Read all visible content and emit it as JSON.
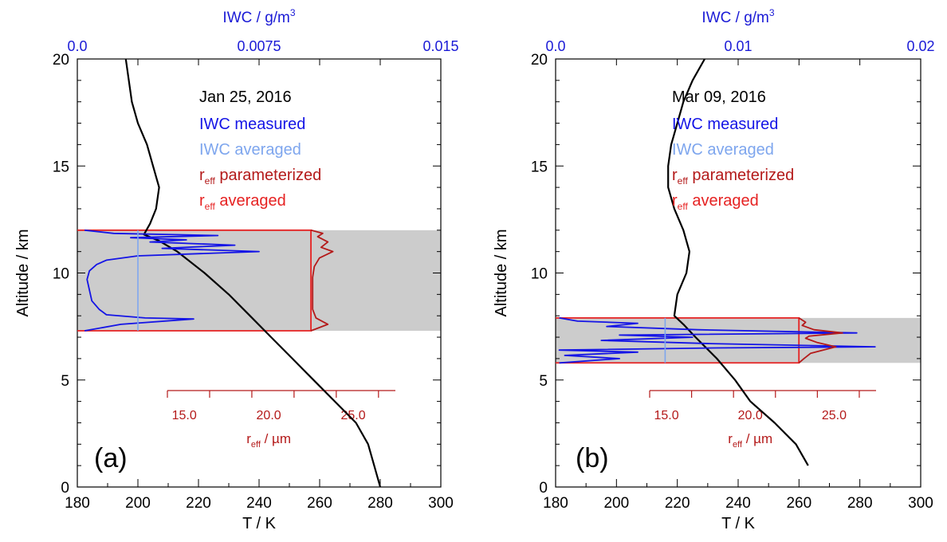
{
  "chart_data": [
    {
      "type": "line",
      "panel_label": "(a)",
      "date": "Jan 25, 2016",
      "ylabel": "Altitude / km",
      "xlabel": "T / K",
      "top_axis_label": "IWC / g/m³",
      "reff_axis_label": "r_eff / µm",
      "ylim": [
        0,
        20
      ],
      "yticks": [
        "0",
        "5",
        "10",
        "15",
        "20"
      ],
      "xlim": [
        180,
        300
      ],
      "xticks": [
        "180",
        "200",
        "220",
        "240",
        "260",
        "280",
        "300"
      ],
      "top_xlim": [
        0,
        0.015
      ],
      "top_ticks": [
        "0.0",
        "0.0075",
        "0.015"
      ],
      "reff_ticks": [
        "15.0",
        "20.0",
        "25.0"
      ],
      "cloud_layer": {
        "bottom_km": 7.3,
        "top_km": 12.0
      },
      "legend": [
        "IWC measured",
        "IWC averaged",
        "r_eff parameterized",
        "r_eff averaged"
      ],
      "colors": {
        "temperature": "#000000",
        "iwc_measured": "#1414e6",
        "iwc_averaged": "#7ea6ee",
        "reff_parameterized": "#b41a1a",
        "reff_averaged": "#e62222",
        "cloud": "#cccccc",
        "axis_blue": "#1a1ad6",
        "axis_red": "#b41a1a"
      },
      "series": [
        {
          "name": "T",
          "axis": "T / K",
          "points": [
            [
              280,
              0
            ],
            [
              278,
              1
            ],
            [
              276,
              2
            ],
            [
              272,
              3
            ],
            [
              265,
              4
            ],
            [
              258,
              5
            ],
            [
              251,
              6
            ],
            [
              244,
              7
            ],
            [
              237,
              8
            ],
            [
              230,
              9
            ],
            [
              222,
              10
            ],
            [
              213,
              11
            ],
            [
              207,
              11.5
            ],
            [
              202,
              11.8
            ],
            [
              204,
              12.3
            ],
            [
              206,
              13
            ],
            [
              207,
              14
            ],
            [
              205,
              15
            ],
            [
              203,
              16
            ],
            [
              200,
              17
            ],
            [
              198,
              18
            ],
            [
              197,
              19
            ],
            [
              196,
              20
            ]
          ]
        },
        {
          "name": "IWC measured",
          "axis": "IWC / g/m³",
          "points": [
            [
              0.0003,
              7.3
            ],
            [
              0.0018,
              7.6
            ],
            [
              0.0048,
              7.85
            ],
            [
              0.0028,
              7.9
            ],
            [
              0.0012,
              8.05
            ],
            [
              0.0009,
              8.3
            ],
            [
              0.0006,
              8.7
            ],
            [
              0.0005,
              9.2
            ],
            [
              0.0004,
              9.7
            ],
            [
              0.0005,
              10.1
            ],
            [
              0.0008,
              10.4
            ],
            [
              0.0012,
              10.6
            ],
            [
              0.0025,
              10.8
            ],
            [
              0.0075,
              11.0
            ],
            [
              0.0035,
              11.15
            ],
            [
              0.0065,
              11.3
            ],
            [
              0.003,
              11.45
            ],
            [
              0.0045,
              11.55
            ],
            [
              0.0022,
              11.65
            ],
            [
              0.0058,
              11.75
            ],
            [
              0.0015,
              11.85
            ],
            [
              0.0003,
              12.0
            ]
          ]
        },
        {
          "name": "IWC averaged",
          "axis": "IWC / g/m³",
          "points": [
            [
              0.0025,
              7.3
            ],
            [
              0.0025,
              12.0
            ]
          ]
        },
        {
          "name": "r_eff parameterized",
          "axis": "r_eff / µm",
          "points": [
            [
              22.5,
              7.3
            ],
            [
              23.5,
              7.6
            ],
            [
              22.8,
              7.9
            ],
            [
              22.6,
              8.3
            ],
            [
              22.6,
              9.0
            ],
            [
              22.6,
              9.8
            ],
            [
              22.7,
              10.3
            ],
            [
              23.0,
              10.7
            ],
            [
              23.8,
              11.0
            ],
            [
              23.1,
              11.2
            ],
            [
              23.5,
              11.45
            ],
            [
              22.9,
              11.7
            ],
            [
              23.2,
              11.85
            ],
            [
              22.5,
              12.0
            ]
          ]
        },
        {
          "name": "r_eff averaged",
          "axis": "r_eff / µm",
          "points": [
            [
              22.5,
              7.3
            ],
            [
              22.5,
              12.0
            ]
          ]
        }
      ]
    },
    {
      "type": "line",
      "panel_label": "(b)",
      "date": "Mar 09, 2016",
      "ylabel": "Altitude / km",
      "xlabel": "T / K",
      "top_axis_label": "IWC / g/m³",
      "reff_axis_label": "r_eff / µm",
      "ylim": [
        0,
        20
      ],
      "yticks": [
        "0",
        "5",
        "10",
        "15",
        "20"
      ],
      "xlim": [
        180,
        300
      ],
      "xticks": [
        "180",
        "200",
        "220",
        "240",
        "260",
        "280",
        "300"
      ],
      "top_xlim": [
        0,
        0.02
      ],
      "top_ticks": [
        "0.0",
        "0.01",
        "0.02"
      ],
      "reff_ticks": [
        "15.0",
        "20.0",
        "25.0"
      ],
      "cloud_layer": {
        "bottom_km": 5.8,
        "top_km": 7.9
      },
      "legend": [
        "IWC measured",
        "IWC averaged",
        "r_eff parameterized",
        "r_eff averaged"
      ],
      "colors": {
        "temperature": "#000000",
        "iwc_measured": "#1414e6",
        "iwc_averaged": "#7ea6ee",
        "reff_parameterized": "#b41a1a",
        "reff_averaged": "#e62222",
        "cloud": "#cccccc",
        "axis_blue": "#1a1ad6",
        "axis_red": "#b41a1a"
      },
      "series": [
        {
          "name": "T",
          "axis": "T / K",
          "points": [
            [
              263,
              1
            ],
            [
              259,
              2
            ],
            [
              252,
              3
            ],
            [
              244,
              4
            ],
            [
              239,
              5
            ],
            [
              233,
              6
            ],
            [
              226,
              7
            ],
            [
              222,
              7.6
            ],
            [
              219,
              8
            ],
            [
              220,
              9
            ],
            [
              223,
              10
            ],
            [
              224,
              11
            ],
            [
              222,
              12
            ],
            [
              219,
              13
            ],
            [
              217,
              14
            ],
            [
              217,
              15
            ],
            [
              218,
              16
            ],
            [
              220,
              17
            ],
            [
              222,
              18
            ],
            [
              225,
              19
            ],
            [
              229,
              20
            ]
          ]
        },
        {
          "name": "IWC measured",
          "axis": "IWC / g/m³",
          "points": [
            [
              0.0002,
              5.8
            ],
            [
              0.0035,
              6.0
            ],
            [
              0.0005,
              6.15
            ],
            [
              0.0045,
              6.3
            ],
            [
              0.0002,
              6.4
            ],
            [
              0.0088,
              6.5
            ],
            [
              0.0175,
              6.55
            ],
            [
              0.0085,
              6.7
            ],
            [
              0.0025,
              6.85
            ],
            [
              0.0075,
              7.0
            ],
            [
              0.0035,
              7.1
            ],
            [
              0.0165,
              7.2
            ],
            [
              0.0078,
              7.35
            ],
            [
              0.0028,
              7.5
            ],
            [
              0.0045,
              7.65
            ],
            [
              0.0012,
              7.75
            ],
            [
              0.0002,
              7.9
            ]
          ]
        },
        {
          "name": "IWC averaged",
          "axis": "IWC / g/m³",
          "points": [
            [
              0.006,
              5.8
            ],
            [
              0.006,
              7.9
            ]
          ]
        },
        {
          "name": "r_eff parameterized",
          "axis": "r_eff / µm",
          "points": [
            [
              22.9,
              5.8
            ],
            [
              23.2,
              6.0
            ],
            [
              23.6,
              6.25
            ],
            [
              25.1,
              6.55
            ],
            [
              24.0,
              6.75
            ],
            [
              23.3,
              6.95
            ],
            [
              23.5,
              7.05
            ],
            [
              25.5,
              7.2
            ],
            [
              23.8,
              7.35
            ],
            [
              23.1,
              7.55
            ],
            [
              23.3,
              7.7
            ],
            [
              22.9,
              7.9
            ]
          ]
        },
        {
          "name": "r_eff averaged",
          "axis": "r_eff / µm",
          "points": [
            [
              22.9,
              5.8
            ],
            [
              22.9,
              7.9
            ]
          ]
        }
      ]
    }
  ]
}
